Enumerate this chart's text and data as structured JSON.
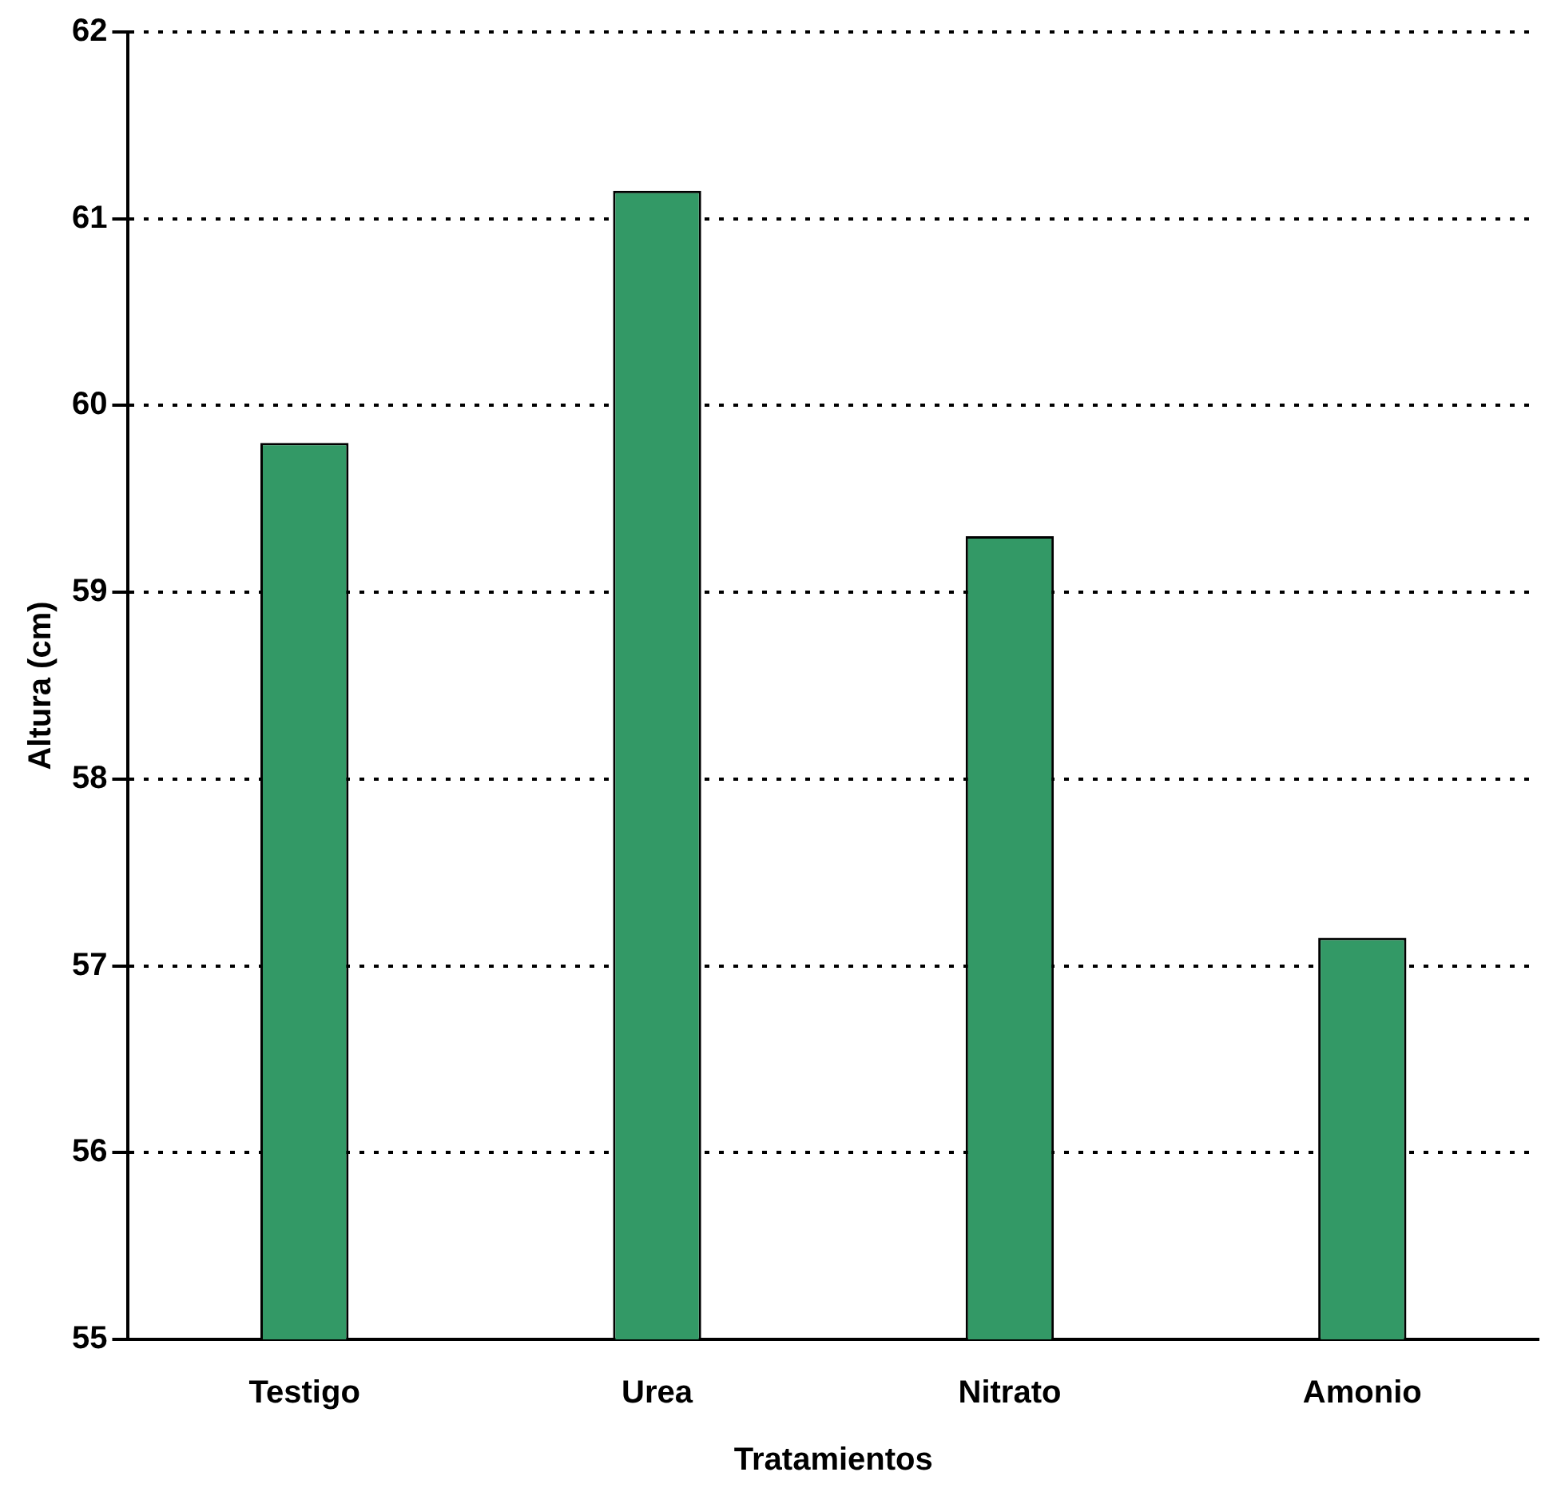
{
  "chart_data": {
    "type": "bar",
    "xlabel": "Tratamientos",
    "ylabel": "Altura (cm)",
    "categories": [
      "Testigo",
      "Urea",
      "Nitrato",
      "Amonio"
    ],
    "values": [
      59.8,
      61.15,
      59.3,
      57.15
    ],
    "color": "#339966",
    "ylim": [
      55,
      62
    ],
    "yticks": [
      55,
      56,
      57,
      58,
      59,
      60,
      61,
      62
    ],
    "grid": "y",
    "legend": false
  }
}
